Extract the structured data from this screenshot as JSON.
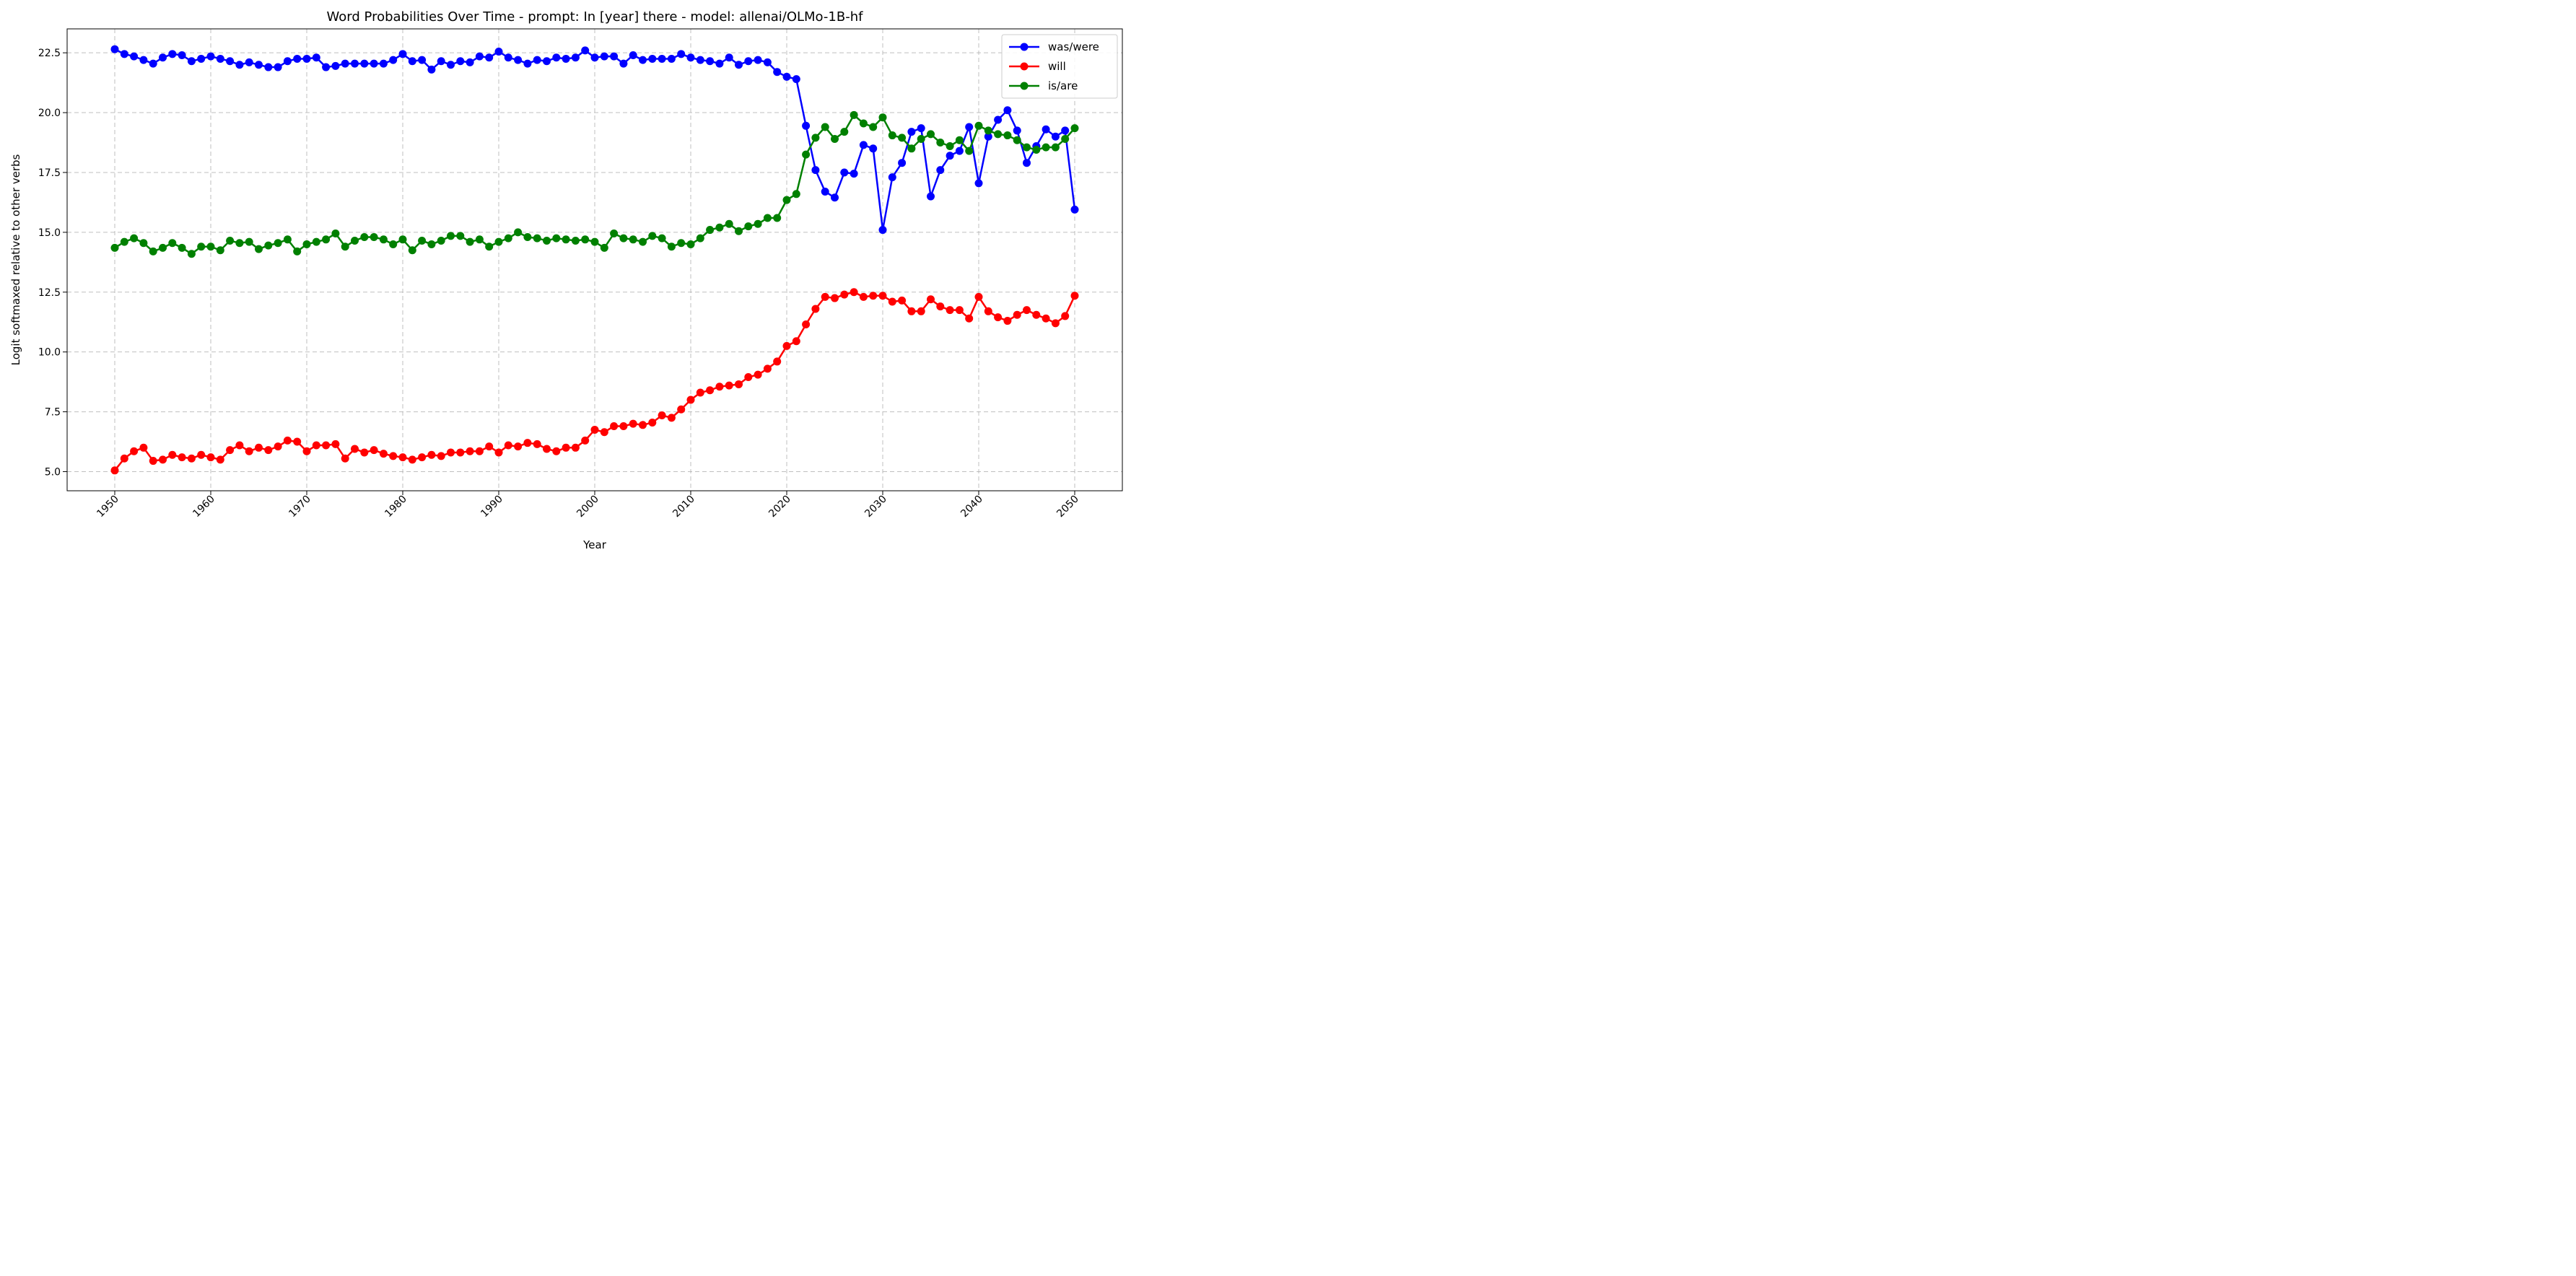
{
  "chart_data": {
    "type": "line",
    "title": "Word Probabilities Over Time - prompt: In [year] there - model: allenai/OLMo-1B-hf",
    "xlabel": "Year",
    "ylabel": "Logit softmaxed relative to other verbs",
    "xlim": [
      1945,
      2050
    ],
    "ylim": [
      4.2,
      23.5
    ],
    "x_ticks": [
      1950,
      1960,
      1970,
      1980,
      1990,
      2000,
      2010,
      2020,
      2030,
      2040,
      2050
    ],
    "y_ticks": [
      5.0,
      7.5,
      10.0,
      12.5,
      15.0,
      17.5,
      20.0,
      22.5
    ],
    "grid": true,
    "legend_position": "top-right",
    "x": [
      1950,
      1951,
      1952,
      1953,
      1954,
      1955,
      1956,
      1957,
      1958,
      1959,
      1960,
      1961,
      1962,
      1963,
      1964,
      1965,
      1966,
      1967,
      1968,
      1969,
      1970,
      1971,
      1972,
      1973,
      1974,
      1975,
      1976,
      1977,
      1978,
      1979,
      1980,
      1981,
      1982,
      1983,
      1984,
      1985,
      1986,
      1987,
      1988,
      1989,
      1990,
      1991,
      1992,
      1993,
      1994,
      1995,
      1996,
      1997,
      1998,
      1999,
      2000,
      2001,
      2002,
      2003,
      2004,
      2005,
      2006,
      2007,
      2008,
      2009,
      2010,
      2011,
      2012,
      2013,
      2014,
      2015,
      2016,
      2017,
      2018,
      2019,
      2020,
      2021,
      2022,
      2023,
      2024,
      2025,
      2026,
      2027,
      2028,
      2029,
      2030,
      2031,
      2032,
      2033,
      2034,
      2035,
      2036,
      2037,
      2038,
      2039,
      2040,
      2041,
      2042,
      2043,
      2044,
      2045,
      2046,
      2047,
      2048,
      2049,
      2050
    ],
    "series": [
      {
        "name": "was/were",
        "color": "#0000ff",
        "values": [
          22.65,
          22.45,
          22.35,
          22.2,
          22.05,
          22.3,
          22.45,
          22.4,
          22.15,
          22.25,
          22.35,
          22.25,
          22.15,
          22.0,
          22.1,
          22.0,
          21.9,
          21.9,
          22.15,
          22.25,
          22.25,
          22.3,
          21.9,
          21.95,
          22.05,
          22.05,
          22.05,
          22.05,
          22.05,
          22.2,
          22.45,
          22.15,
          22.2,
          21.8,
          22.15,
          22.0,
          22.15,
          22.1,
          22.35,
          22.3,
          22.55,
          22.3,
          22.2,
          22.05,
          22.2,
          22.15,
          22.3,
          22.25,
          22.3,
          22.6,
          22.3,
          22.35,
          22.35,
          22.05,
          22.4,
          22.2,
          22.25,
          22.25,
          22.25,
          22.45,
          22.3,
          22.2,
          22.15,
          22.05,
          22.3,
          22.0,
          22.15,
          22.2,
          22.1,
          21.7,
          21.5,
          21.4,
          19.45,
          17.6,
          16.7,
          16.45,
          17.5,
          17.45,
          18.65,
          18.5,
          15.1,
          17.3,
          17.9,
          19.2,
          19.35,
          16.5,
          17.6,
          18.2,
          18.4,
          19.4,
          17.05,
          19.0,
          19.7,
          20.1,
          19.25,
          17.9,
          18.6,
          19.3,
          19.0,
          19.25,
          15.95
        ]
      },
      {
        "name": "will",
        "color": "#ff0000",
        "values": [
          5.05,
          5.55,
          5.85,
          6.0,
          5.45,
          5.5,
          5.7,
          5.6,
          5.55,
          5.7,
          5.6,
          5.5,
          5.9,
          6.1,
          5.85,
          6.0,
          5.9,
          6.05,
          6.3,
          6.25,
          5.85,
          6.1,
          6.1,
          6.15,
          5.55,
          5.95,
          5.8,
          5.9,
          5.75,
          5.65,
          5.6,
          5.5,
          5.6,
          5.7,
          5.65,
          5.8,
          5.8,
          5.85,
          5.85,
          6.05,
          5.8,
          6.1,
          6.05,
          6.2,
          6.15,
          5.95,
          5.85,
          6.0,
          6.0,
          6.3,
          6.75,
          6.65,
          6.9,
          6.9,
          7.0,
          6.95,
          7.05,
          7.35,
          7.25,
          7.6,
          8.0,
          8.3,
          8.4,
          8.55,
          8.6,
          8.65,
          8.95,
          9.05,
          9.3,
          9.6,
          10.25,
          10.45,
          11.15,
          11.8,
          12.3,
          12.25,
          12.4,
          12.5,
          12.3,
          12.35,
          12.35,
          12.1,
          12.15,
          11.7,
          11.7,
          12.2,
          11.9,
          11.75,
          11.75,
          11.4,
          12.3,
          11.7,
          11.45,
          11.3,
          11.55,
          11.75,
          11.55,
          11.4,
          11.2,
          11.5,
          12.35
        ]
      },
      {
        "name": "is/are",
        "color": "#008000",
        "values": [
          14.35,
          14.6,
          14.75,
          14.55,
          14.2,
          14.35,
          14.55,
          14.35,
          14.1,
          14.4,
          14.4,
          14.25,
          14.65,
          14.55,
          14.6,
          14.3,
          14.45,
          14.55,
          14.7,
          14.2,
          14.5,
          14.6,
          14.7,
          14.95,
          14.4,
          14.65,
          14.8,
          14.8,
          14.7,
          14.5,
          14.7,
          14.25,
          14.65,
          14.5,
          14.65,
          14.85,
          14.85,
          14.6,
          14.7,
          14.4,
          14.6,
          14.75,
          15.0,
          14.8,
          14.75,
          14.65,
          14.75,
          14.7,
          14.65,
          14.7,
          14.6,
          14.35,
          14.95,
          14.75,
          14.7,
          14.6,
          14.85,
          14.75,
          14.4,
          14.55,
          14.5,
          14.75,
          15.1,
          15.2,
          15.35,
          15.05,
          15.25,
          15.35,
          15.6,
          15.6,
          16.35,
          16.6,
          18.25,
          18.95,
          19.4,
          18.9,
          19.2,
          19.9,
          19.55,
          19.4,
          19.8,
          19.05,
          18.95,
          18.5,
          18.9,
          19.1,
          18.75,
          18.6,
          18.85,
          18.4,
          19.45,
          19.25,
          19.1,
          19.05,
          18.85,
          18.55,
          18.45,
          18.55,
          18.55,
          18.9,
          19.35
        ]
      }
    ]
  }
}
